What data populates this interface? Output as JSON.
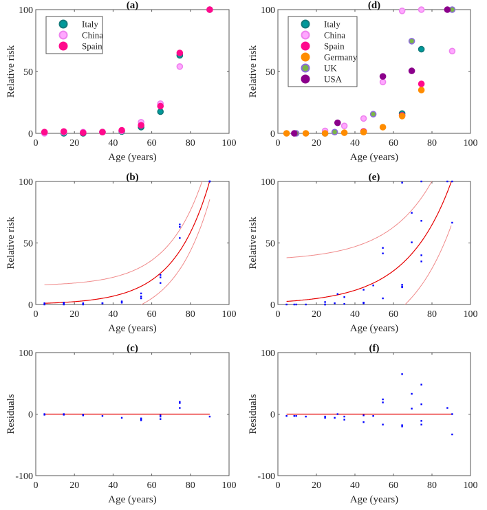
{
  "colors": {
    "Italy": {
      "fill": "#00999a",
      "stroke": "#137a7a",
      "inner": "#00999a"
    },
    "China": {
      "fill": "#ffa8ff",
      "stroke": "#ee82ee",
      "inner": "#ffa8ff"
    },
    "Spain": {
      "fill": "#ff0a8c",
      "stroke": "#ff0a8c",
      "inner": "#ff0a8c"
    },
    "Germany": {
      "fill": "#ff8c00",
      "stroke": "#ff8c00",
      "inner": "#ff8c00"
    },
    "UK": {
      "fill": "#7ab648",
      "stroke": "#8c6bd9",
      "inner": "#7ab648"
    },
    "USA": {
      "fill": "#8b008b",
      "stroke": "#8b008b",
      "inner": "#8b008b"
    },
    "fit": "#e60000",
    "band": "#f08a8a",
    "residual_points": "#0000ff"
  },
  "chart_data": [
    {
      "id": "a",
      "title": "(a)",
      "type": "scatter",
      "xlabel": "Age (years)",
      "ylabel": "Relative risk",
      "xlim": [
        0,
        100
      ],
      "ylim": [
        0,
        100
      ],
      "xticks": [
        0,
        20,
        40,
        60,
        80,
        100
      ],
      "yticks": [
        0,
        50,
        100
      ],
      "legend": "top-left",
      "series": [
        {
          "name": "Italy",
          "points": [
            [
              4.5,
              0.5
            ],
            [
              14.5,
              0
            ],
            [
              24.5,
              0
            ],
            [
              34.5,
              1
            ],
            [
              44.5,
              1.5
            ],
            [
              54.5,
              5
            ],
            [
              64.5,
              17.5
            ],
            [
              74.5,
              63
            ],
            [
              90,
              100
            ]
          ]
        },
        {
          "name": "China",
          "points": [
            [
              4.5,
              0
            ],
            [
              14.5,
              1
            ],
            [
              24.5,
              1
            ],
            [
              34.5,
              1
            ],
            [
              44.5,
              2
            ],
            [
              54.5,
              9
            ],
            [
              64.5,
              24
            ],
            [
              74.5,
              54
            ],
            [
              90,
              100
            ]
          ]
        },
        {
          "name": "Spain",
          "points": [
            [
              4.5,
              1
            ],
            [
              14.5,
              1.5
            ],
            [
              24.5,
              0.5
            ],
            [
              34.5,
              1
            ],
            [
              44.5,
              2.5
            ],
            [
              54.5,
              6.5
            ],
            [
              64.5,
              22
            ],
            [
              74.5,
              65
            ],
            [
              90,
              100
            ]
          ]
        }
      ]
    },
    {
      "id": "b",
      "title": "(b)",
      "type": "line",
      "xlabel": "Age (years)",
      "ylabel": "Relative risk",
      "xlim": [
        0,
        100
      ],
      "ylim": [
        0,
        100
      ],
      "xticks": [
        0,
        20,
        40,
        60,
        80,
        100
      ],
      "yticks": [
        0,
        50,
        100
      ],
      "points_from": "a",
      "fit": {
        "model": "a*exp(b*x)",
        "a": 0.785,
        "b": 0.0539,
        "upper_scale": 1.05,
        "upper_offset": 15,
        "lower_offset": -15,
        "x_range": [
          4.5,
          90
        ]
      }
    },
    {
      "id": "c",
      "title": "(c)",
      "type": "scatter",
      "xlabel": "Age (years)",
      "ylabel": "Residuals",
      "xlim": [
        0,
        100
      ],
      "ylim": [
        -100,
        100
      ],
      "xticks": [
        0,
        20,
        40,
        60,
        80,
        100
      ],
      "yticks": [
        -100,
        0,
        100
      ],
      "zero_line": [
        4.5,
        90
      ],
      "points": [
        [
          4.5,
          0
        ],
        [
          4.5,
          -1
        ],
        [
          14.5,
          0
        ],
        [
          14.5,
          -1
        ],
        [
          24.5,
          -1
        ],
        [
          24.5,
          -2
        ],
        [
          34.5,
          -3
        ],
        [
          44.5,
          -6
        ],
        [
          54.5,
          -7
        ],
        [
          54.5,
          -8
        ],
        [
          54.5,
          -10
        ],
        [
          64.5,
          -2
        ],
        [
          64.5,
          -4
        ],
        [
          64.5,
          -8
        ],
        [
          74.5,
          20
        ],
        [
          74.5,
          18
        ],
        [
          74.5,
          10
        ],
        [
          90,
          -4
        ]
      ]
    },
    {
      "id": "d",
      "title": "(d)",
      "type": "scatter",
      "xlabel": "Age (years)",
      "ylabel": "Relative risk",
      "xlim": [
        0,
        100
      ],
      "ylim": [
        0,
        100
      ],
      "xticks": [
        0,
        20,
        40,
        60,
        80,
        100
      ],
      "yticks": [
        0,
        50,
        100
      ],
      "legend": "top-left",
      "series": [
        {
          "name": "Italy",
          "points": [
            [
              24.5,
              0
            ],
            [
              44.5,
              1.5
            ],
            [
              64.5,
              16
            ],
            [
              74.5,
              68
            ]
          ]
        },
        {
          "name": "China",
          "points": [
            [
              24.5,
              2
            ],
            [
              34.5,
              6
            ],
            [
              44.5,
              12
            ],
            [
              54.5,
              41.5
            ],
            [
              64.5,
              99
            ],
            [
              74.5,
              100
            ],
            [
              90.5,
              66.5
            ]
          ]
        },
        {
          "name": "Spain",
          "points": [
            [
              44.5,
              1.5
            ],
            [
              64.5,
              14.5
            ],
            [
              74.5,
              40
            ]
          ]
        },
        {
          "name": "Germany",
          "points": [
            [
              4.5,
              0
            ],
            [
              14.5,
              0
            ],
            [
              24.5,
              0
            ],
            [
              34.5,
              0.5
            ],
            [
              44.5,
              1
            ],
            [
              54.5,
              5
            ],
            [
              64.5,
              14
            ],
            [
              74.5,
              35
            ]
          ]
        },
        {
          "name": "UK",
          "points": [
            [
              9.5,
              0
            ],
            [
              29.5,
              1
            ],
            [
              49.5,
              15.5
            ],
            [
              69.5,
              74.5
            ],
            [
              90.5,
              100
            ]
          ]
        },
        {
          "name": "USA",
          "points": [
            [
              8.5,
              0
            ],
            [
              31,
              8.5
            ],
            [
              54.5,
              46
            ],
            [
              69.5,
              50.5
            ],
            [
              88,
              100
            ]
          ]
        }
      ]
    },
    {
      "id": "e",
      "title": "(e)",
      "type": "line",
      "xlabel": "Age (years)",
      "ylabel": "Relative risk",
      "xlim": [
        0,
        100
      ],
      "ylim": [
        0,
        100
      ],
      "xticks": [
        0,
        20,
        40,
        60,
        80,
        100
      ],
      "yticks": [
        0,
        50,
        100
      ],
      "points_from": "d",
      "fit": {
        "model": "a*exp(b*x)",
        "a": 2.06,
        "b": 0.0431,
        "upper_scale": 1,
        "upper_offset": 35.5,
        "lower_offset": -35.5,
        "x_range": [
          4.5,
          90
        ]
      }
    },
    {
      "id": "f",
      "title": "(f)",
      "type": "scatter",
      "xlabel": "Age (years)",
      "ylabel": "Residuals",
      "xlim": [
        0,
        100
      ],
      "ylim": [
        -100,
        100
      ],
      "xticks": [
        0,
        20,
        40,
        60,
        80,
        100
      ],
      "yticks": [
        -100,
        0,
        100
      ],
      "zero_line": [
        4.5,
        90.5
      ],
      "points": [
        [
          4.5,
          -3
        ],
        [
          8.5,
          -3
        ],
        [
          9.5,
          -3
        ],
        [
          14.5,
          -4
        ],
        [
          24.5,
          -4
        ],
        [
          24.5,
          -6
        ],
        [
          29.5,
          -6
        ],
        [
          31,
          0
        ],
        [
          34.5,
          -4
        ],
        [
          34.5,
          -9
        ],
        [
          44.5,
          -2
        ],
        [
          44.5,
          -13
        ],
        [
          49.5,
          -3
        ],
        [
          54.5,
          24
        ],
        [
          54.5,
          19
        ],
        [
          54.5,
          -17
        ],
        [
          64.5,
          65
        ],
        [
          64.5,
          -18
        ],
        [
          64.5,
          -20
        ],
        [
          69.5,
          33
        ],
        [
          69.5,
          9
        ],
        [
          74.5,
          48
        ],
        [
          74.5,
          16
        ],
        [
          74.5,
          -11
        ],
        [
          74.5,
          -17
        ],
        [
          88,
          10
        ],
        [
          90.5,
          0
        ],
        [
          90.5,
          -33
        ]
      ]
    }
  ]
}
